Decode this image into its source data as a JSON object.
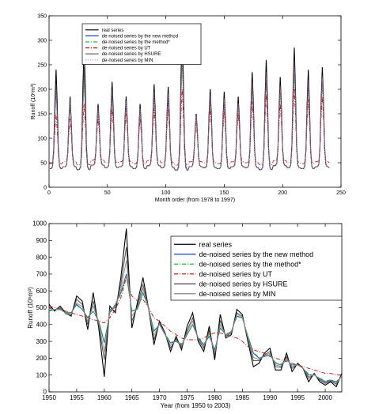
{
  "chart_data": [
    {
      "type": "line",
      "title": "",
      "xlabel": "Month order (from 1978 to 1997)",
      "ylabel": "Runoff (10⁶m³)",
      "xlim": [
        0,
        250
      ],
      "ylim": [
        0,
        350
      ],
      "xticks": [
        0,
        50,
        100,
        150,
        200,
        250
      ],
      "yticks": [
        0,
        50,
        100,
        150,
        200,
        250,
        300,
        350
      ],
      "grid": false,
      "legend_position": "top-left",
      "series": [
        {
          "name": "real series",
          "color": "#000000",
          "style": "solid",
          "marker": "",
          "peaks": [
            240,
            185,
            290,
            170,
            215,
            185,
            170,
            210,
            205,
            325,
            150,
            200,
            195,
            185,
            235,
            260,
            225,
            285,
            240,
            245,
            205
          ]
        },
        {
          "name": "de-noised series by the new method",
          "color": "#1f3fbf",
          "style": "solid",
          "marker": "",
          "peaks": [
            205,
            175,
            230,
            160,
            195,
            175,
            160,
            190,
            190,
            270,
            145,
            185,
            180,
            170,
            210,
            230,
            205,
            250,
            215,
            225,
            190
          ]
        },
        {
          "name": "de-noised series by the method*",
          "color": "#22bb33",
          "style": "dashdot",
          "marker": "",
          "peaks": [
            195,
            170,
            215,
            158,
            188,
            170,
            158,
            185,
            185,
            255,
            142,
            180,
            175,
            168,
            205,
            222,
            198,
            240,
            208,
            218,
            185
          ]
        },
        {
          "name": "de-noised series by UT",
          "color": "#cc1111",
          "style": "dashdot",
          "marker": "dot",
          "peaks": [
            150,
            140,
            170,
            140,
            160,
            150,
            140,
            160,
            160,
            200,
            130,
            160,
            155,
            150,
            175,
            190,
            170,
            200,
            180,
            185,
            165
          ]
        },
        {
          "name": "de-noised series by HSURE",
          "color": "#555555",
          "style": "solid",
          "marker": "star",
          "peaks": [
            210,
            178,
            245,
            162,
            198,
            176,
            162,
            195,
            192,
            280,
            146,
            188,
            182,
            172,
            215,
            235,
            208,
            258,
            220,
            228,
            192
          ]
        },
        {
          "name": "de-noised series by MIN",
          "color": "#ff66cc",
          "style": "dotted",
          "marker": "",
          "peaks": [
            200,
            172,
            225,
            160,
            192,
            172,
            160,
            188,
            188,
            262,
            144,
            182,
            178,
            170,
            208,
            226,
            202,
            245,
            212,
            222,
            188
          ]
        }
      ]
    },
    {
      "type": "line",
      "title": "",
      "xlabel": "Year (from 1950 to 2003)",
      "ylabel": "Runoff (10⁶m³)",
      "xlim": [
        1950,
        2003
      ],
      "ylim": [
        0,
        1000
      ],
      "xticks": [
        1950,
        1955,
        1960,
        1965,
        1970,
        1975,
        1980,
        1985,
        1990,
        1995,
        2000
      ],
      "yticks": [
        0,
        100,
        200,
        300,
        400,
        500,
        600,
        700,
        800,
        900,
        1000
      ],
      "grid": false,
      "legend_position": "top-right",
      "x": [
        1950,
        1951,
        1952,
        1953,
        1954,
        1955,
        1956,
        1957,
        1958,
        1959,
        1960,
        1961,
        1962,
        1963,
        1964,
        1965,
        1966,
        1967,
        1968,
        1969,
        1970,
        1971,
        1972,
        1973,
        1974,
        1975,
        1976,
        1977,
        1978,
        1979,
        1980,
        1981,
        1982,
        1983,
        1984,
        1985,
        1986,
        1987,
        1988,
        1989,
        1990,
        1991,
        1992,
        1993,
        1994,
        1995,
        1996,
        1997,
        1998,
        1999,
        2000,
        2001,
        2002,
        2003
      ],
      "series": [
        {
          "name": "real series",
          "color": "#000000",
          "style": "solid",
          "values": [
            520,
            480,
            510,
            470,
            450,
            570,
            540,
            370,
            590,
            380,
            90,
            510,
            470,
            680,
            970,
            380,
            530,
            680,
            500,
            280,
            420,
            350,
            240,
            330,
            250,
            390,
            470,
            300,
            240,
            390,
            190,
            460,
            320,
            340,
            490,
            460,
            300,
            150,
            170,
            230,
            260,
            130,
            130,
            230,
            120,
            170,
            140,
            60,
            110,
            60,
            40,
            60,
            30,
            110
          ]
        },
        {
          "name": "de-noised series by the new method",
          "color": "#1f3fbf",
          "style": "solid",
          "values": [
            480,
            490,
            490,
            470,
            470,
            520,
            490,
            440,
            480,
            420,
            290,
            470,
            520,
            590,
            700,
            480,
            490,
            590,
            500,
            360,
            400,
            340,
            290,
            300,
            280,
            340,
            400,
            320,
            280,
            330,
            250,
            380,
            340,
            360,
            450,
            440,
            330,
            230,
            200,
            210,
            220,
            170,
            160,
            190,
            160,
            160,
            140,
            100,
            100,
            80,
            60,
            70,
            60,
            90
          ]
        },
        {
          "name": "de-noised series by the method*",
          "color": "#22bb33",
          "style": "dashdot",
          "values": [
            485,
            490,
            488,
            472,
            472,
            515,
            488,
            445,
            478,
            425,
            300,
            465,
            515,
            580,
            690,
            485,
            492,
            585,
            502,
            365,
            402,
            345,
            295,
            302,
            285,
            342,
            398,
            325,
            285,
            332,
            255,
            378,
            342,
            358,
            445,
            438,
            335,
            235,
            205,
            212,
            222,
            175,
            165,
            192,
            162,
            162,
            142,
            105,
            102,
            82,
            65,
            72,
            62,
            92
          ]
        },
        {
          "name": "de-noised series by UT",
          "color": "#cc1111",
          "style": "dashdot",
          "values": [
            510,
            500,
            495,
            480,
            470,
            460,
            450,
            440,
            430,
            420,
            410,
            440,
            490,
            560,
            680,
            570,
            540,
            550,
            500,
            440,
            420,
            390,
            360,
            340,
            320,
            310,
            310,
            310,
            320,
            340,
            350,
            350,
            340,
            330,
            320,
            300,
            270,
            250,
            240,
            230,
            210,
            200,
            190,
            180,
            170,
            160,
            150,
            140,
            130,
            120,
            110,
            110,
            100,
            100
          ]
        },
        {
          "name": "de-noised series by HSURE",
          "color": "#444444",
          "style": "solid",
          "values": [
            500,
            485,
            500,
            465,
            455,
            550,
            520,
            400,
            540,
            400,
            190,
            490,
            500,
            640,
            860,
            420,
            510,
            640,
            500,
            310,
            410,
            345,
            260,
            315,
            265,
            365,
            440,
            310,
            260,
            365,
            215,
            425,
            330,
            350,
            470,
            450,
            315,
            185,
            185,
            220,
            240,
            150,
            145,
            210,
            140,
            165,
            140,
            80,
            105,
            70,
            50,
            65,
            45,
            100
          ]
        },
        {
          "name": "de-noised series by MIN",
          "color": "#888888",
          "style": "solid",
          "values": [
            495,
            488,
            495,
            468,
            462,
            530,
            505,
            420,
            510,
            410,
            240,
            480,
            510,
            610,
            780,
            450,
            500,
            615,
            500,
            335,
            405,
            342,
            275,
            308,
            272,
            352,
            420,
            315,
            270,
            348,
            232,
            400,
            335,
            355,
            460,
            445,
            322,
            205,
            192,
            215,
            230,
            160,
            152,
            200,
            150,
            162,
            140,
            90,
            102,
            75,
            55,
            68,
            52,
            95
          ]
        }
      ]
    }
  ]
}
